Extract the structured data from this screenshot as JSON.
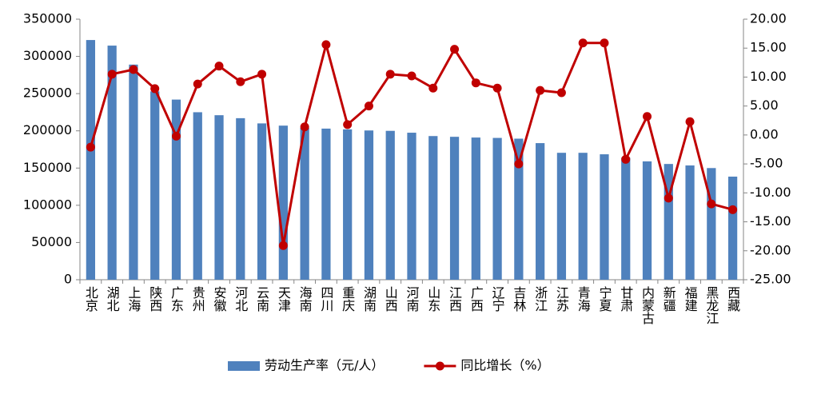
{
  "chart_data": {
    "type": "bar-line",
    "categories": [
      "北京",
      "湖北",
      "上海",
      "陕西",
      "广东",
      "贵州",
      "安徽",
      "河北",
      "云南",
      "天津",
      "海南",
      "四川",
      "重庆",
      "湖南",
      "山西",
      "河南",
      "山东",
      "江西",
      "广西",
      "辽宁",
      "吉林",
      "浙江",
      "江苏",
      "青海",
      "宁夏",
      "甘肃",
      "内蒙古",
      "新疆",
      "福建",
      "黑龙江",
      "西藏"
    ],
    "series": [
      {
        "name": "劳动生产率（元/人）",
        "type": "bar",
        "color": "#4f81bd",
        "values": [
          322000,
          314500,
          289000,
          253000,
          242000,
          225000,
          221000,
          217000,
          210000,
          207000,
          204000,
          203000,
          202000,
          200500,
          200000,
          197500,
          193000,
          192000,
          191000,
          190500,
          189500,
          183500,
          170500,
          170500,
          168500,
          164000,
          159000,
          155500,
          153500,
          150000,
          138500
        ]
      },
      {
        "name": "同比增长（%）",
        "type": "line",
        "axis": "y2",
        "color": "#c00000",
        "values": [
          -2.1,
          10.5,
          11.3,
          8.0,
          -0.2,
          8.8,
          11.9,
          9.2,
          10.5,
          -19.1,
          1.4,
          15.6,
          1.8,
          5.0,
          10.5,
          10.2,
          8.1,
          14.8,
          9.0,
          8.1,
          -5.0,
          7.7,
          7.3,
          15.9,
          15.9,
          -4.2,
          3.2,
          -10.9,
          2.3,
          -11.9,
          -12.9
        ]
      }
    ],
    "ylim": [
      0,
      350000
    ],
    "yticks": [
      0,
      50000,
      100000,
      150000,
      200000,
      250000,
      300000,
      350000
    ],
    "y2lim": [
      -25,
      20
    ],
    "y2ticks": [
      {
        "value": -25,
        "label": "-25.00"
      },
      {
        "value": -20,
        "label": "-20.00"
      },
      {
        "value": -15,
        "label": "-15.00"
      },
      {
        "value": -10,
        "label": "-10.00"
      },
      {
        "value": -5,
        "label": "-5.00"
      },
      {
        "value": 0,
        "label": "0.00"
      },
      {
        "value": 5,
        "label": "5.00"
      },
      {
        "value": 10,
        "label": "10.00"
      },
      {
        "value": 15,
        "label": "15.00"
      },
      {
        "value": 20,
        "label": "20.00"
      }
    ],
    "legend": "bottom",
    "grid": false
  }
}
